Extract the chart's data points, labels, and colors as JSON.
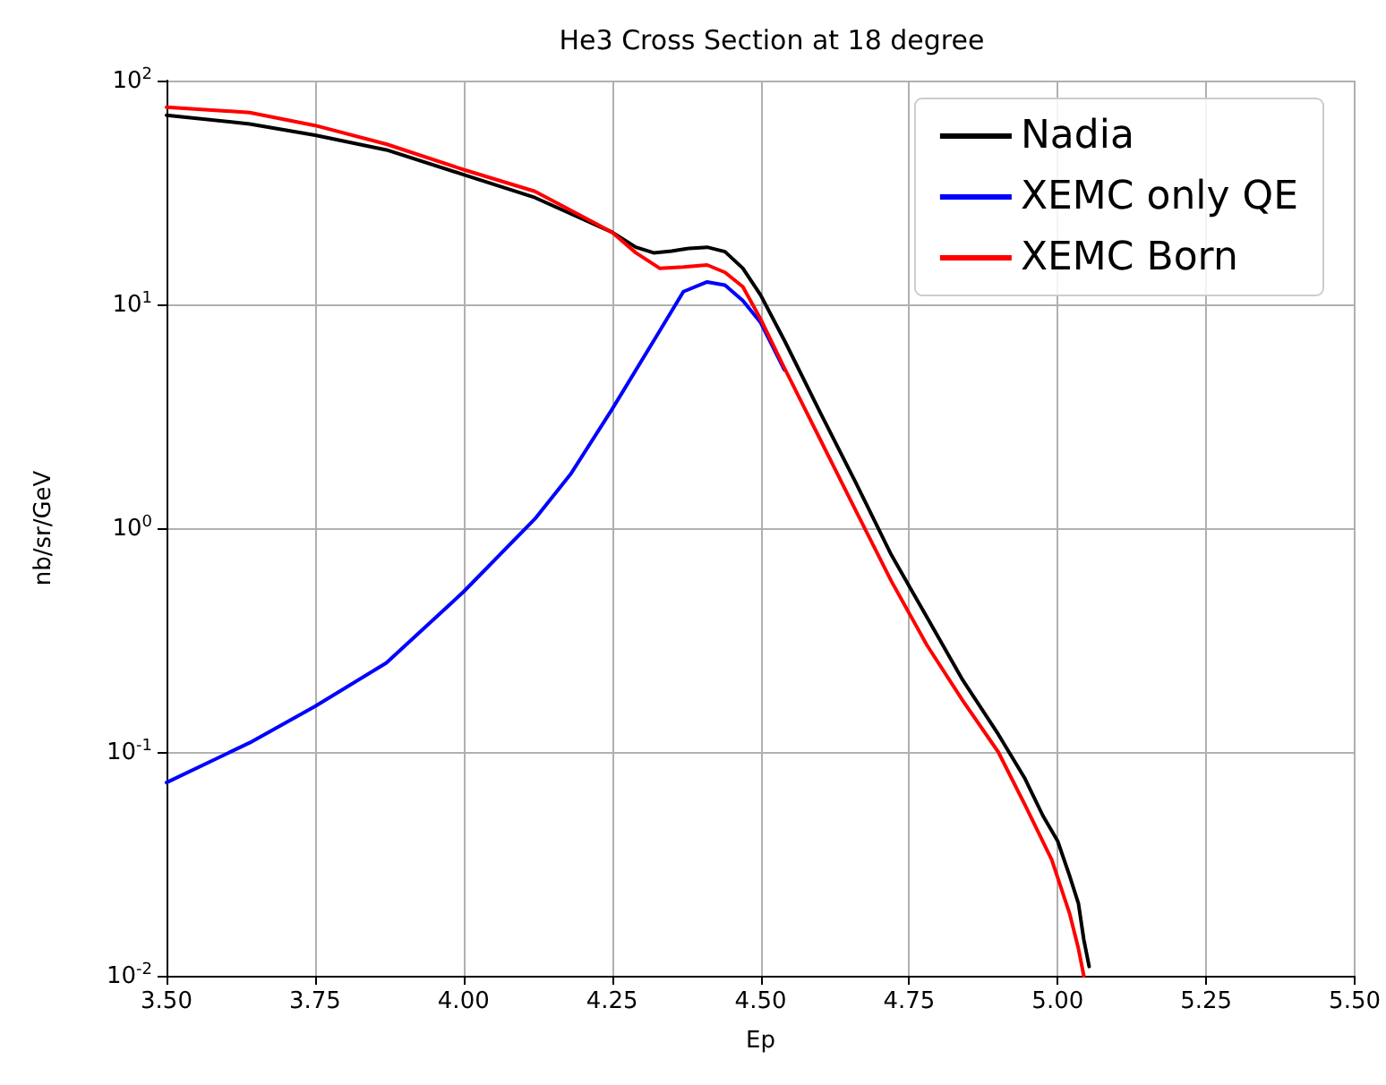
{
  "chart_data": {
    "type": "line",
    "title": "He3 Cross Section at 18 degree",
    "xlabel": "Ep",
    "ylabel": "nb/sr/GeV",
    "log": "y",
    "grid": true,
    "legend": "top right",
    "marker": "none",
    "line_style": "solid",
    "xlim": [
      3.5,
      5.5
    ],
    "xticks": [
      {
        "value": 3.5,
        "label": "3.50"
      },
      {
        "value": 3.75,
        "label": "3.75"
      },
      {
        "value": 4.0,
        "label": "4.00"
      },
      {
        "value": 4.25,
        "label": "4.25"
      },
      {
        "value": 4.5,
        "label": "4.50"
      },
      {
        "value": 4.75,
        "label": "4.75"
      },
      {
        "value": 5.0,
        "label": "5.00"
      },
      {
        "value": 5.25,
        "label": "5.25"
      },
      {
        "value": 5.5,
        "label": "5.50"
      }
    ],
    "ylim": [
      0.01,
      100
    ],
    "yticks": [
      {
        "value": 0.01,
        "label": "10$^{-2}$"
      },
      {
        "value": 0.1,
        "label": "10$^{-1}$"
      },
      {
        "value": 1,
        "label": "10$^{0}$"
      },
      {
        "value": 10,
        "label": "10$^{1}$"
      },
      {
        "value": 100,
        "label": "10$^{2}$"
      }
    ],
    "series": [
      {
        "name": "Nadia",
        "color": "#000000",
        "x": [
          3.5,
          3.64,
          3.75,
          3.87,
          4.0,
          4.12,
          4.25,
          4.29,
          4.32,
          4.35,
          4.38,
          4.41,
          4.44,
          4.47,
          4.5,
          4.54,
          4.6,
          4.66,
          4.72,
          4.78,
          4.84,
          4.9,
          4.945,
          4.975,
          5.0,
          5.02,
          5.035,
          5.044,
          5.053
        ],
        "values": [
          70,
          64,
          57,
          49,
          38,
          30,
          21,
          18,
          17,
          17.3,
          17.8,
          18,
          17.2,
          14.5,
          11,
          6.9,
          3.3,
          1.6,
          0.76,
          0.4,
          0.21,
          0.12,
          0.076,
          0.052,
          0.04,
          0.028,
          0.021,
          0.0145,
          0.011
        ]
      },
      {
        "name": "XEMC only QE",
        "color": "#0000ff",
        "x": [
          3.5,
          3.64,
          3.75,
          3.87,
          4.0,
          4.12,
          4.18,
          4.25,
          4.33,
          4.37,
          4.41,
          4.44,
          4.47,
          4.5,
          4.54
        ],
        "values": [
          0.073,
          0.11,
          0.16,
          0.25,
          0.52,
          1.1,
          1.74,
          3.4,
          7.6,
          11.4,
          12.6,
          12.2,
          10.4,
          8.3,
          5.1
        ]
      },
      {
        "name": "XEMC Born",
        "color": "#ff0000",
        "x": [
          3.5,
          3.64,
          3.75,
          3.87,
          4.0,
          4.12,
          4.25,
          4.29,
          4.33,
          4.37,
          4.41,
          4.44,
          4.47,
          4.5,
          4.54,
          4.6,
          4.66,
          4.72,
          4.78,
          4.84,
          4.9,
          4.945,
          4.99,
          5.02,
          5.035,
          5.044
        ],
        "values": [
          76,
          72,
          63,
          52,
          40,
          32,
          21,
          17,
          14.5,
          14.7,
          15,
          13.9,
          12,
          8.6,
          5.2,
          2.5,
          1.2,
          0.58,
          0.3,
          0.17,
          0.1,
          0.058,
          0.033,
          0.019,
          0.0132,
          0.01
        ]
      }
    ]
  }
}
